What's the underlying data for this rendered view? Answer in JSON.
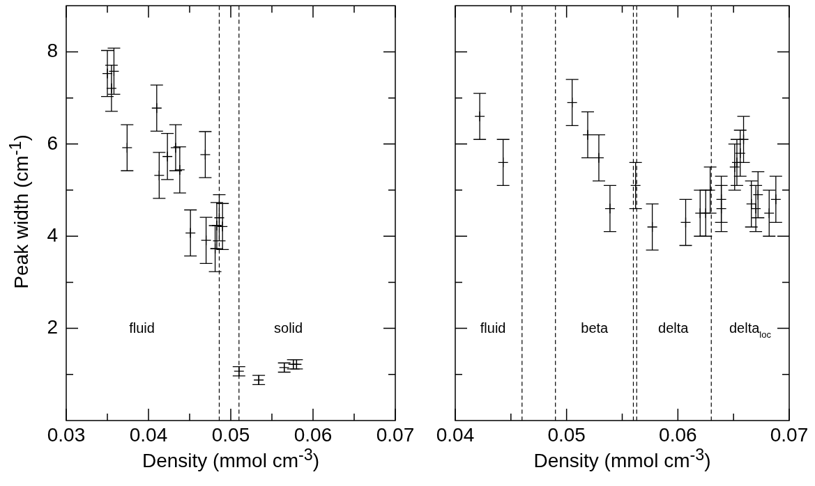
{
  "chart_data": [
    {
      "type": "scatter",
      "xlabel": "Density (mmol cm$^{-3}$)",
      "ylabel": "Peak width (cm$^{-1}$)",
      "marker": "cross",
      "color": "#000000",
      "tick_labels": "xy",
      "x": [
        0.035,
        0.0358,
        0.0355,
        0.0374,
        0.041,
        0.0413,
        0.0423,
        0.0433,
        0.0438,
        0.0469,
        0.0451,
        0.047,
        0.0481,
        0.0486,
        0.049,
        0.0483,
        0.051,
        0.0534,
        0.0565,
        0.0576,
        0.058
      ],
      "values": [
        7.53,
        7.58,
        7.21,
        5.92,
        6.78,
        5.32,
        5.73,
        5.92,
        5.44,
        5.77,
        4.07,
        3.91,
        3.73,
        4.4,
        4.21,
        4.23,
        1.07,
        0.88,
        1.15,
        1.22,
        1.22
      ],
      "errors": [
        0.5,
        0.5,
        0.5,
        0.5,
        0.5,
        0.5,
        0.5,
        0.5,
        0.5,
        0.5,
        0.5,
        0.5,
        0.5,
        0.5,
        0.5,
        0.5,
        0.1,
        0.1,
        0.1,
        0.1,
        0.1
      ],
      "xlim": [
        0.03,
        0.07
      ],
      "xticks": [
        0.03,
        {
          "value": 0.035,
          "label": null
        },
        0.04,
        {
          "value": 0.045,
          "label": null
        },
        0.05,
        {
          "value": 0.055,
          "label": null
        },
        0.06,
        {
          "value": 0.065,
          "label": null
        },
        0.07
      ],
      "ylim": [
        0,
        9
      ],
      "yticks": [
        {
          "value": 1,
          "label": null
        },
        2,
        {
          "value": 3,
          "label": null
        },
        4,
        {
          "value": 5,
          "label": null
        },
        6,
        {
          "value": 7,
          "label": null
        },
        8
      ],
      "ref_lines": [
        {
          "axis": "x",
          "value": 0.0486,
          "line_style": "dashed"
        },
        {
          "axis": "x",
          "value": 0.051,
          "line_style": "dashed"
        }
      ],
      "annotations": [
        "fluid",
        "solid"
      ]
    },
    {
      "type": "scatter",
      "xlabel": "Density (mmol cm$^{-3}$)",
      "marker": "cross",
      "color": "#000000",
      "tick_labels": "x",
      "x": [
        0.0422,
        0.0443,
        0.0505,
        0.0519,
        0.0529,
        0.0539,
        0.0562,
        0.0577,
        0.0607,
        0.062,
        0.0625,
        0.0629,
        0.0639,
        0.0639,
        0.0651,
        0.0653,
        0.0656,
        0.0659,
        0.0666,
        0.067,
        0.0672,
        0.0682,
        0.0688
      ],
      "values": [
        6.6,
        5.6,
        6.9,
        6.2,
        5.7,
        4.6,
        5.1,
        4.2,
        4.3,
        4.5,
        4.5,
        5.0,
        4.8,
        4.6,
        5.5,
        5.6,
        5.8,
        6.1,
        4.7,
        4.6,
        4.9,
        4.5,
        4.8
      ],
      "errors": [
        0.5,
        0.5,
        0.5,
        0.5,
        0.5,
        0.5,
        0.5,
        0.5,
        0.5,
        0.5,
        0.5,
        0.5,
        0.5,
        0.5,
        0.5,
        0.5,
        0.5,
        0.5,
        0.5,
        0.5,
        0.5,
        0.5,
        0.5
      ],
      "xlim": [
        0.04,
        0.07
      ],
      "xticks": [
        0.04,
        {
          "value": 0.045,
          "label": null
        },
        0.05,
        {
          "value": 0.055,
          "label": null
        },
        0.06,
        {
          "value": 0.065,
          "label": null
        },
        0.07
      ],
      "ylim": [
        0,
        9
      ],
      "yticks": [
        {
          "value": 1,
          "label": null
        },
        {
          "value": 2,
          "label": null
        },
        {
          "value": 3,
          "label": null
        },
        {
          "value": 4,
          "label": null
        },
        {
          "value": 5,
          "label": null
        },
        {
          "value": 6,
          "label": null
        },
        {
          "value": 7,
          "label": null
        },
        {
          "value": 8,
          "label": null
        }
      ],
      "ref_lines": [
        {
          "axis": "x",
          "value": 0.046,
          "line_style": "dashed"
        },
        {
          "axis": "x",
          "value": 0.049,
          "line_style": "dashed"
        },
        {
          "axis": "x",
          "value": 0.056,
          "line_style": "dashed"
        },
        {
          "axis": "x",
          "value": 0.0563,
          "line_style": "dashed"
        },
        {
          "axis": "x",
          "value": 0.063,
          "line_style": "dashed"
        }
      ],
      "annotations": [
        "fluid",
        "beta",
        "delta",
        "delta$_{loc}$"
      ]
    }
  ]
}
